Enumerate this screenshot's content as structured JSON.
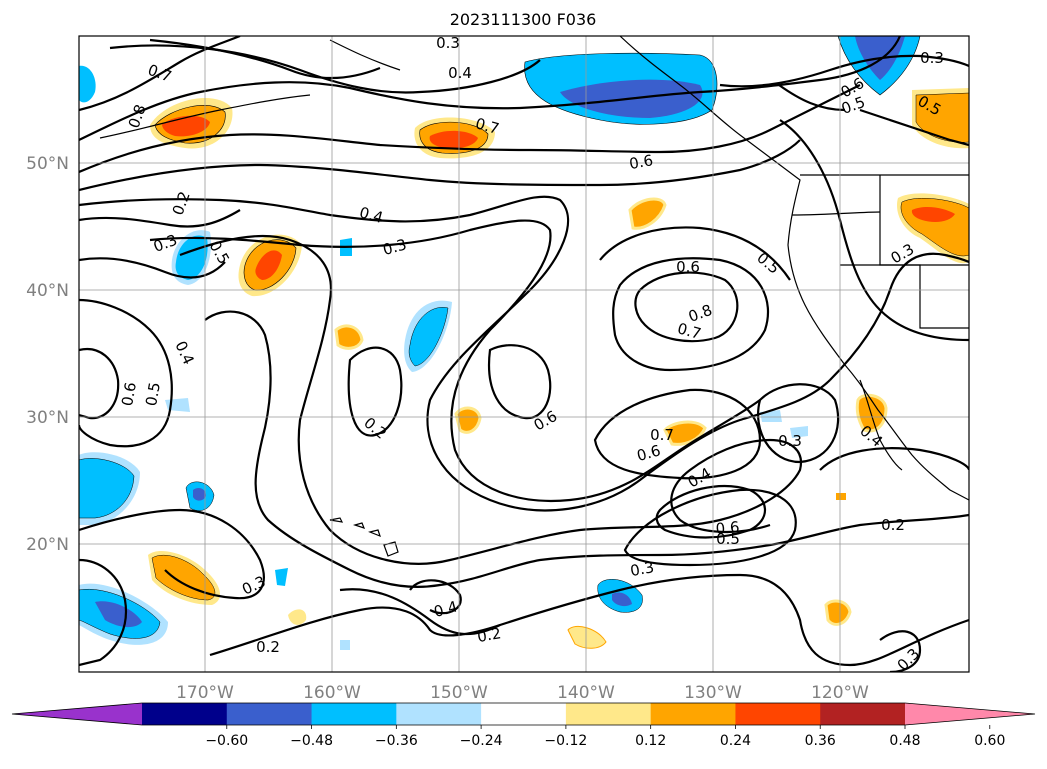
{
  "map": {
    "title": "2023111300 F036",
    "lat_labels": [
      "50°N",
      "40°N",
      "30°N",
      "20°N"
    ],
    "lon_labels": [
      "170°W",
      "160°W",
      "150°W",
      "140°W",
      "130°W",
      "120°W"
    ],
    "contour_labels": [
      "0.7",
      "0.8",
      "0.4",
      "0.3",
      "0.3",
      "0.6",
      "0.5",
      "0.5",
      "0.7",
      "0.6",
      "0.2",
      "0.4",
      "0.3",
      "0.3",
      "0.5",
      "0.4",
      "0.5",
      "0.6",
      "0.2",
      "0.6",
      "0.8",
      "0.7",
      "0.6",
      "0.5",
      "0.3",
      "0.7",
      "0.6",
      "0.4",
      "0.3",
      "0.4",
      "0.6",
      "0.5",
      "0.2",
      "0.3",
      "0.4",
      "0.2",
      "0.3",
      "0.3",
      "0.2"
    ],
    "colorbar": {
      "ticks": [
        "−0.60",
        "−0.48",
        "−0.36",
        "−0.24",
        "−0.12",
        "0.12",
        "0.24",
        "0.36",
        "0.48",
        "0.60"
      ],
      "colors": [
        "#9932cc",
        "#00008b",
        "#3a5fcd",
        "#00bfff",
        "#b0e2ff",
        "#ffffff",
        "#ffe88a",
        "#ffa500",
        "#ff4500",
        "#b22222",
        "#ff88aa"
      ]
    },
    "fill_colors": {
      "light_blue": "#b0e2ff",
      "blue": "#00bfff",
      "royal_blue": "#3a5fcd",
      "yellow": "#ffe88a",
      "orange": "#ffa500",
      "red_orange": "#ff4500"
    }
  }
}
